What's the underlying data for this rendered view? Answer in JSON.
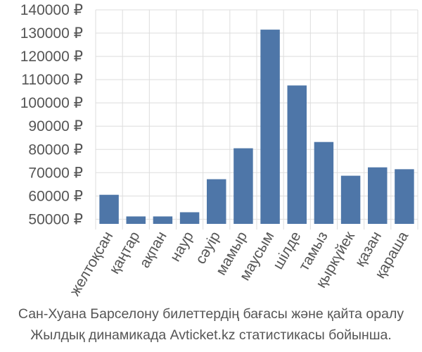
{
  "chart_data": {
    "type": "bar",
    "categories": [
      "желтоқсан",
      "қаңтар",
      "ақпан",
      "наур",
      "сәуір",
      "мамыр",
      "маусым",
      "шілде",
      "тамыз",
      "қыркүйек",
      "қазан",
      "қараша"
    ],
    "values": [
      60500,
      51200,
      51200,
      53000,
      67200,
      80500,
      131500,
      107500,
      83200,
      68700,
      72300,
      71500
    ],
    "y_tick_labels": [
      "50000 ₽",
      "60000 ₽",
      "70000 ₽",
      "80000 ₽",
      "90000 ₽",
      "100000 ₽",
      "110000 ₽",
      "120000 ₽",
      "130000 ₽",
      "140000 ₽"
    ],
    "ylim": [
      48000,
      140000
    ],
    "y_tick_values": [
      50000,
      60000,
      70000,
      80000,
      90000,
      100000,
      110000,
      120000,
      130000,
      140000
    ],
    "grid": true,
    "colors": {
      "bar": "#4e76a8",
      "grid": "#dddddd",
      "text": "#555555"
    }
  },
  "caption": {
    "line1": "Сан-Хуана Барселону билеттердің бағасы және қайта оралу",
    "line2": "Жылдық динамикада Avticket.kz статистикасы бойынша."
  }
}
